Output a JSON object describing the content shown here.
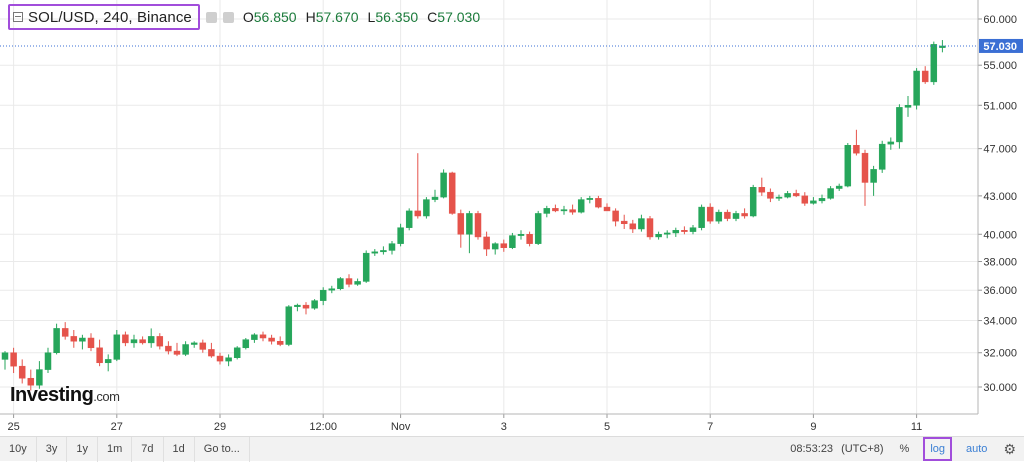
{
  "header": {
    "symbol": "SOL/USD, 240, Binance",
    "ohlc": [
      {
        "label": "O",
        "value": "56.850"
      },
      {
        "label": "H",
        "value": "57.670"
      },
      {
        "label": "L",
        "value": "56.350"
      },
      {
        "label": "C",
        "value": "57.030"
      }
    ]
  },
  "logo": {
    "main": "Investing",
    "suffix": ".com"
  },
  "bottom_bar": {
    "ranges": [
      "10y",
      "3y",
      "1y",
      "1m",
      "7d",
      "1d"
    ],
    "goto": "Go to...",
    "time": "08:53:23",
    "timezone": "(UTC+8)",
    "percent": "%",
    "log": "log",
    "auto": "auto"
  },
  "colors": {
    "up": "#26a65b",
    "down": "#e5534b",
    "grid": "#eaeaea",
    "last_price_line": "#3b6fd4",
    "accent_box": "#a14ddb"
  },
  "chart_data": {
    "type": "candlestick",
    "scale": "log",
    "price_axis": {
      "ticks": [
        "30.000",
        "32.000",
        "34.000",
        "36.000",
        "38.000",
        "40.000",
        "43.000",
        "47.000",
        "51.000",
        "55.000",
        "60.000"
      ],
      "range": [
        29.0,
        62.0
      ]
    },
    "time_axis": {
      "labels": [
        {
          "i": 1,
          "text": "25"
        },
        {
          "i": 13,
          "text": "27"
        },
        {
          "i": 25,
          "text": "29"
        },
        {
          "i": 37,
          "text": "12:00"
        },
        {
          "i": 46,
          "text": "Nov"
        },
        {
          "i": 58,
          "text": "3"
        },
        {
          "i": 70,
          "text": "5"
        },
        {
          "i": 82,
          "text": "7"
        },
        {
          "i": 94,
          "text": "9"
        },
        {
          "i": 106,
          "text": "11"
        }
      ]
    },
    "last_price": "57.030",
    "candles": [
      [
        31.6,
        32.1,
        31.0,
        32.0
      ],
      [
        32.0,
        32.3,
        30.8,
        31.2
      ],
      [
        31.2,
        31.6,
        30.2,
        30.5
      ],
      [
        30.5,
        31.0,
        29.8,
        30.1
      ],
      [
        30.1,
        31.5,
        29.9,
        31.0
      ],
      [
        31.0,
        32.3,
        30.8,
        32.0
      ],
      [
        32.0,
        33.8,
        31.9,
        33.5
      ],
      [
        33.5,
        33.9,
        32.8,
        33.0
      ],
      [
        33.0,
        33.4,
        32.3,
        32.7
      ],
      [
        32.7,
        33.1,
        32.2,
        32.9
      ],
      [
        32.9,
        33.2,
        32.1,
        32.3
      ],
      [
        32.3,
        32.8,
        31.2,
        31.4
      ],
      [
        31.4,
        31.9,
        30.9,
        31.6
      ],
      [
        31.6,
        33.4,
        31.5,
        33.1
      ],
      [
        33.1,
        33.3,
        32.4,
        32.6
      ],
      [
        32.6,
        33.1,
        32.3,
        32.8
      ],
      [
        32.8,
        33.0,
        32.5,
        32.6
      ],
      [
        32.6,
        33.5,
        32.3,
        33.0
      ],
      [
        33.0,
        33.2,
        32.2,
        32.4
      ],
      [
        32.4,
        32.7,
        31.9,
        32.1
      ],
      [
        32.1,
        32.6,
        31.8,
        31.9
      ],
      [
        31.9,
        32.7,
        31.8,
        32.5
      ],
      [
        32.5,
        32.7,
        32.3,
        32.6
      ],
      [
        32.6,
        32.8,
        32.0,
        32.2
      ],
      [
        32.2,
        32.6,
        31.7,
        31.8
      ],
      [
        31.8,
        32.0,
        31.3,
        31.5
      ],
      [
        31.5,
        31.9,
        31.2,
        31.7
      ],
      [
        31.7,
        32.4,
        31.6,
        32.3
      ],
      [
        32.3,
        32.9,
        32.2,
        32.8
      ],
      [
        32.8,
        33.2,
        32.6,
        33.1
      ],
      [
        33.1,
        33.3,
        32.7,
        32.9
      ],
      [
        32.9,
        33.1,
        32.5,
        32.7
      ],
      [
        32.7,
        33.0,
        32.4,
        32.5
      ],
      [
        32.5,
        35.0,
        32.4,
        34.9
      ],
      [
        34.9,
        35.1,
        34.6,
        35.0
      ],
      [
        35.0,
        35.2,
        34.4,
        34.8
      ],
      [
        34.8,
        35.4,
        34.7,
        35.3
      ],
      [
        35.3,
        36.2,
        35.0,
        36.0
      ],
      [
        36.0,
        36.3,
        35.8,
        36.1
      ],
      [
        36.1,
        36.9,
        36.0,
        36.8
      ],
      [
        36.8,
        37.1,
        36.2,
        36.4
      ],
      [
        36.4,
        36.8,
        36.3,
        36.6
      ],
      [
        36.6,
        38.8,
        36.5,
        38.6
      ],
      [
        38.6,
        38.9,
        38.4,
        38.7
      ],
      [
        38.7,
        39.1,
        38.5,
        38.8
      ],
      [
        38.8,
        39.5,
        38.5,
        39.3
      ],
      [
        39.3,
        40.8,
        39.1,
        40.5
      ],
      [
        40.5,
        42.0,
        40.3,
        41.8
      ],
      [
        41.8,
        46.6,
        41.2,
        41.4
      ],
      [
        41.4,
        42.9,
        41.2,
        42.7
      ],
      [
        42.7,
        43.5,
        42.5,
        42.9
      ],
      [
        42.9,
        45.2,
        42.8,
        44.9
      ],
      [
        44.9,
        45.0,
        41.5,
        41.6
      ],
      [
        41.6,
        41.9,
        39.0,
        40.0
      ],
      [
        40.0,
        41.8,
        38.6,
        41.6
      ],
      [
        41.6,
        41.8,
        39.6,
        39.8
      ],
      [
        39.8,
        40.2,
        38.4,
        38.9
      ],
      [
        38.9,
        39.4,
        38.5,
        39.3
      ],
      [
        39.3,
        39.6,
        38.7,
        39.0
      ],
      [
        39.0,
        40.1,
        38.9,
        39.9
      ],
      [
        39.9,
        40.3,
        39.6,
        40.0
      ],
      [
        40.0,
        40.2,
        39.1,
        39.3
      ],
      [
        39.3,
        41.8,
        39.2,
        41.6
      ],
      [
        41.6,
        42.2,
        41.3,
        42.0
      ],
      [
        42.0,
        42.3,
        41.7,
        41.8
      ],
      [
        41.8,
        42.2,
        41.5,
        41.9
      ],
      [
        41.9,
        42.3,
        41.5,
        41.7
      ],
      [
        41.7,
        42.9,
        41.6,
        42.7
      ],
      [
        42.7,
        43.0,
        42.4,
        42.8
      ],
      [
        42.8,
        43.0,
        42.0,
        42.1
      ],
      [
        42.1,
        42.4,
        41.8,
        41.8
      ],
      [
        41.8,
        42.0,
        40.6,
        41.0
      ],
      [
        41.0,
        41.5,
        40.4,
        40.8
      ],
      [
        40.8,
        41.1,
        40.1,
        40.4
      ],
      [
        40.4,
        41.5,
        40.2,
        41.2
      ],
      [
        41.2,
        41.4,
        39.6,
        39.8
      ],
      [
        39.8,
        40.2,
        39.6,
        40.0
      ],
      [
        40.0,
        40.3,
        39.7,
        40.1
      ],
      [
        40.1,
        40.5,
        39.8,
        40.3
      ],
      [
        40.3,
        40.6,
        40.0,
        40.2
      ],
      [
        40.2,
        40.7,
        40.0,
        40.5
      ],
      [
        40.5,
        42.3,
        40.3,
        42.1
      ],
      [
        42.1,
        42.4,
        40.8,
        41.0
      ],
      [
        41.0,
        41.9,
        40.8,
        41.7
      ],
      [
        41.7,
        41.9,
        41.0,
        41.2
      ],
      [
        41.2,
        41.8,
        41.0,
        41.6
      ],
      [
        41.6,
        42.0,
        41.2,
        41.4
      ],
      [
        41.4,
        43.9,
        41.3,
        43.7
      ],
      [
        43.7,
        44.5,
        43.0,
        43.3
      ],
      [
        43.3,
        43.6,
        42.5,
        42.8
      ],
      [
        42.8,
        43.1,
        42.6,
        42.9
      ],
      [
        42.9,
        43.4,
        42.8,
        43.2
      ],
      [
        43.2,
        43.5,
        42.9,
        43.0
      ],
      [
        43.0,
        43.3,
        42.2,
        42.4
      ],
      [
        42.4,
        42.9,
        42.3,
        42.6
      ],
      [
        42.6,
        43.1,
        42.4,
        42.8
      ],
      [
        42.8,
        43.8,
        42.7,
        43.6
      ],
      [
        43.6,
        44.0,
        43.4,
        43.8
      ],
      [
        43.8,
        47.5,
        43.7,
        47.3
      ],
      [
        47.3,
        48.7,
        46.4,
        46.6
      ],
      [
        46.6,
        46.9,
        42.2,
        44.1
      ],
      [
        44.1,
        45.5,
        43.0,
        45.2
      ],
      [
        45.2,
        47.7,
        44.9,
        47.4
      ],
      [
        47.4,
        48.0,
        46.9,
        47.6
      ],
      [
        47.6,
        51.1,
        47.0,
        50.8
      ],
      [
        50.8,
        51.9,
        49.9,
        51.0
      ],
      [
        51.0,
        54.7,
        50.6,
        54.4
      ],
      [
        54.4,
        54.9,
        53.1,
        53.3
      ],
      [
        53.3,
        57.5,
        53.0,
        57.2
      ],
      [
        56.85,
        57.67,
        56.35,
        57.03
      ]
    ]
  }
}
